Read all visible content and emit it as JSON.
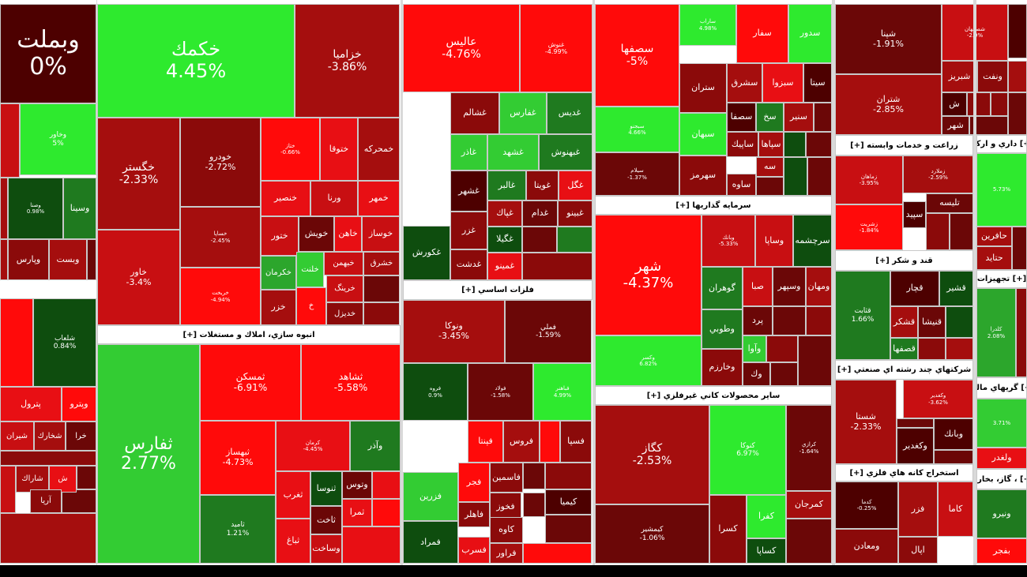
{
  "colors": {
    "dark": "#4d0000",
    "maroon": "#6b0707",
    "red1": "#8b0a0a",
    "red2": "#a50e0e",
    "red3": "#c80f12",
    "red4": "#e80f14",
    "red5": "#ff0a0a",
    "green1": "#0e4d0e",
    "green2": "#1f7a1f",
    "green3": "#2ca62c",
    "green4": "#33cc33",
    "green5": "#2eea2e"
  },
  "groups": [
    {
      "name": "انبوه سازي، املاك و مستغلات [+]"
    },
    {
      "name": "فلزات اساسي [+]"
    },
    {
      "name": "سرمايه گذاريها [+]"
    },
    {
      "name": "ساير محصولات كاني غيرفلزي [+]"
    },
    {
      "name": "زراعت و خدمات وابسته [+]"
    },
    {
      "name": "قند و شكر [+]"
    },
    {
      "name": "شركتهاي چند رشته اي صنعتي [+]"
    },
    {
      "name": "استخراج كانه هاي فلزي [+]"
    },
    {
      "name": "[+] داري و اركيا"
    },
    {
      "name": "[+] تجهيزات"
    },
    {
      "name": "[+] گريهاي مالي"
    },
    {
      "name": "[+] ، گاز، بخاروا"
    }
  ],
  "tiles": [
    {
      "sym": "وبملت",
      "pct": "0%"
    },
    {
      "sym": "وخاور",
      "pct": "5%"
    },
    {
      "sym": "وصنا",
      "pct": "0.98%"
    },
    {
      "sym": "وسينا",
      "pct": ""
    },
    {
      "sym": "وپارس",
      "pct": ""
    },
    {
      "sym": "وبست",
      "pct": ""
    },
    {
      "sym": "شلعاب",
      "pct": "0.84%"
    },
    {
      "sym": "پترول",
      "pct": ""
    },
    {
      "sym": "وپترو",
      "pct": ""
    },
    {
      "sym": "شيران",
      "pct": ""
    },
    {
      "sym": "شخارك",
      "pct": ""
    },
    {
      "sym": "خرا",
      "pct": ""
    },
    {
      "sym": "شاراك",
      "pct": ""
    },
    {
      "sym": "ش",
      "pct": ""
    },
    {
      "sym": "آريا",
      "pct": ""
    },
    {
      "sym": "خكمك",
      "pct": "4.45%"
    },
    {
      "sym": "خزاميا",
      "pct": "-3.86%"
    },
    {
      "sym": "خگستر",
      "pct": "-2.33%"
    },
    {
      "sym": "خودرو",
      "pct": "-2.72%"
    },
    {
      "sym": "ختاز",
      "pct": "-0.66%"
    },
    {
      "sym": "ختوقا",
      "pct": ""
    },
    {
      "sym": "خمحركه",
      "pct": ""
    },
    {
      "sym": "خساپا",
      "pct": "-2.45%"
    },
    {
      "sym": "خنصير",
      "pct": ""
    },
    {
      "sym": "ورنا",
      "pct": ""
    },
    {
      "sym": "خمهر",
      "pct": ""
    },
    {
      "sym": "خاور",
      "pct": "-3.4%"
    },
    {
      "sym": "ختور",
      "pct": ""
    },
    {
      "sym": "خويش",
      "pct": ""
    },
    {
      "sym": "خاهن",
      "pct": ""
    },
    {
      "sym": "خوساز",
      "pct": ""
    },
    {
      "sym": "خريخت",
      "pct": "-4.94%"
    },
    {
      "sym": "خكرمان",
      "pct": ""
    },
    {
      "sym": "خلنت",
      "pct": ""
    },
    {
      "sym": "خبهمن",
      "pct": ""
    },
    {
      "sym": "خشرق",
      "pct": ""
    },
    {
      "sym": "خزر",
      "pct": ""
    },
    {
      "sym": "خ",
      "pct": ""
    },
    {
      "sym": "خرينگ",
      "pct": ""
    },
    {
      "sym": "خديزل",
      "pct": ""
    },
    {
      "sym": "ثفارس",
      "pct": "2.77%"
    },
    {
      "sym": "ثمسكن",
      "pct": "-6.91%"
    },
    {
      "sym": "ثشاهد",
      "pct": "-5.58%"
    },
    {
      "sym": "ثبهساز",
      "pct": "-4.73%"
    },
    {
      "sym": "كرمان",
      "pct": "-4.45%"
    },
    {
      "sym": "وآذر",
      "pct": ""
    },
    {
      "sym": "ثنوسا",
      "pct": ""
    },
    {
      "sym": "وتوس",
      "pct": ""
    },
    {
      "sym": "ثغرب",
      "pct": ""
    },
    {
      "sym": "ثاخت",
      "pct": ""
    },
    {
      "sym": "ثمرا",
      "pct": ""
    },
    {
      "sym": "ثامید",
      "pct": "1.21%"
    },
    {
      "sym": "ثباغ",
      "pct": ""
    },
    {
      "sym": "وساخت",
      "pct": ""
    },
    {
      "sym": "عاليس",
      "pct": "-4.76%"
    },
    {
      "sym": "غنوش",
      "pct": "-4.99%"
    },
    {
      "sym": "غشالم",
      "pct": ""
    },
    {
      "sym": "غفارس",
      "pct": ""
    },
    {
      "sym": "غديس",
      "pct": ""
    },
    {
      "sym": "غاذر",
      "pct": ""
    },
    {
      "sym": "غشهد",
      "pct": ""
    },
    {
      "sym": "غبهنوش",
      "pct": ""
    },
    {
      "sym": "غشهر",
      "pct": ""
    },
    {
      "sym": "غالبر",
      "pct": ""
    },
    {
      "sym": "غويتا",
      "pct": ""
    },
    {
      "sym": "غگل",
      "pct": ""
    },
    {
      "sym": "غپاك",
      "pct": ""
    },
    {
      "sym": "غدام",
      "pct": ""
    },
    {
      "sym": "غبينو",
      "pct": ""
    },
    {
      "sym": "غزر",
      "pct": ""
    },
    {
      "sym": "غگيلا",
      "pct": ""
    },
    {
      "sym": "غكورش",
      "pct": ""
    },
    {
      "sym": "غدشت",
      "pct": ""
    },
    {
      "sym": "غمينو",
      "pct": ""
    },
    {
      "sym": "ونوكا",
      "pct": "-3.45%"
    },
    {
      "sym": "فملي",
      "pct": "-1.59%"
    },
    {
      "sym": "فروه",
      "pct": "0.9%"
    },
    {
      "sym": "فولاد",
      "pct": "-1.58%"
    },
    {
      "sym": "فباهنر",
      "pct": "4.99%"
    },
    {
      "sym": "فپنتا",
      "pct": ""
    },
    {
      "sym": "فروس",
      "pct": ""
    },
    {
      "sym": "فسپا",
      "pct": ""
    },
    {
      "sym": "فجر",
      "pct": ""
    },
    {
      "sym": "فاسمين",
      "pct": ""
    },
    {
      "sym": "فزرين",
      "pct": ""
    },
    {
      "sym": "فخوز",
      "pct": ""
    },
    {
      "sym": "كيميا",
      "pct": ""
    },
    {
      "sym": "فاهلر",
      "pct": ""
    },
    {
      "sym": "كاوه",
      "pct": ""
    },
    {
      "sym": "فمراد",
      "pct": ""
    },
    {
      "sym": "فسرب",
      "pct": ""
    },
    {
      "sym": "فراور",
      "pct": ""
    },
    {
      "sym": "سصفها",
      "pct": "-5%"
    },
    {
      "sym": "ساراب",
      "pct": "4.98%"
    },
    {
      "sym": "سفار",
      "pct": ""
    },
    {
      "sym": "سدور",
      "pct": ""
    },
    {
      "sym": "ستران",
      "pct": ""
    },
    {
      "sym": "سشرق",
      "pct": ""
    },
    {
      "sym": "سبزوا",
      "pct": ""
    },
    {
      "sym": "سيتا",
      "pct": ""
    },
    {
      "sym": "سبجنو",
      "pct": "4.66%"
    },
    {
      "sym": "سصفا",
      "pct": ""
    },
    {
      "sym": "سخ",
      "pct": ""
    },
    {
      "sym": "سنير",
      "pct": ""
    },
    {
      "sym": "سبهان",
      "pct": ""
    },
    {
      "sym": "ساپيك",
      "pct": ""
    },
    {
      "sym": "سپاها",
      "pct": ""
    },
    {
      "sym": "سيلام",
      "pct": "-1.37%"
    },
    {
      "sym": "سهرمز",
      "pct": ""
    },
    {
      "sym": "سه",
      "pct": ""
    },
    {
      "sym": "ساوه",
      "pct": ""
    },
    {
      "sym": "شهر",
      "pct": "-4.37%"
    },
    {
      "sym": "وبانك",
      "pct": "-5.33%"
    },
    {
      "sym": "وساپا",
      "pct": ""
    },
    {
      "sym": "سرچشمه",
      "pct": ""
    },
    {
      "sym": "گوهران",
      "pct": ""
    },
    {
      "sym": "صبا",
      "pct": ""
    },
    {
      "sym": "وسپهر",
      "pct": ""
    },
    {
      "sym": "ومهان",
      "pct": ""
    },
    {
      "sym": "وطوبي",
      "pct": ""
    },
    {
      "sym": "پرد",
      "pct": ""
    },
    {
      "sym": "وآوا",
      "pct": ""
    },
    {
      "sym": "وكسر",
      "pct": "6.82%"
    },
    {
      "sym": "وخارزم",
      "pct": ""
    },
    {
      "sym": "وك",
      "pct": ""
    },
    {
      "sym": "كگاز",
      "pct": "-2.53%"
    },
    {
      "sym": "كنوكا",
      "pct": "6.97%"
    },
    {
      "sym": "كرازي",
      "pct": "-1.64%"
    },
    {
      "sym": "كمرجان",
      "pct": ""
    },
    {
      "sym": "كفرا",
      "pct": ""
    },
    {
      "sym": "كيمشير",
      "pct": "-1.06%"
    },
    {
      "sym": "كسرا",
      "pct": ""
    },
    {
      "sym": "كساپا",
      "pct": ""
    },
    {
      "sym": "شپنا",
      "pct": "-1.91%"
    },
    {
      "sym": "شصفهان",
      "pct": "-2.9%"
    },
    {
      "sym": "شتران",
      "pct": "-2.85%"
    },
    {
      "sym": "شبريز",
      "pct": ""
    },
    {
      "sym": "ونفت",
      "pct": ""
    },
    {
      "sym": "ش",
      "pct": ""
    },
    {
      "sym": "شهر",
      "pct": ""
    },
    {
      "sym": "زماهان",
      "pct": "-3.95%"
    },
    {
      "sym": "زملارد",
      "pct": "-2.59%"
    },
    {
      "sym": "تليسه",
      "pct": ""
    },
    {
      "sym": "سپيد",
      "pct": ""
    },
    {
      "sym": "زشريت",
      "pct": "-1.84%"
    },
    {
      "sym": "قثابت",
      "pct": "1.66%"
    },
    {
      "sym": "قچار",
      "pct": ""
    },
    {
      "sym": "قشير",
      "pct": ""
    },
    {
      "sym": "قشكر",
      "pct": ""
    },
    {
      "sym": "قنيشا",
      "pct": ""
    },
    {
      "sym": "قصفها",
      "pct": ""
    },
    {
      "sym": "وكغدير",
      "pct": "-3.62%"
    },
    {
      "sym": "شستا",
      "pct": "-2.33%"
    },
    {
      "sym": "وبانك",
      "pct": ""
    },
    {
      "sym": "وكغدير",
      "pct": ""
    },
    {
      "sym": "كدما",
      "pct": "-0.25%"
    },
    {
      "sym": "فزر",
      "pct": ""
    },
    {
      "sym": "كاما",
      "pct": ""
    },
    {
      "sym": "ومعادن",
      "pct": ""
    },
    {
      "sym": "اپال",
      "pct": ""
    },
    {
      "sym": "حافرين",
      "pct": ""
    },
    {
      "sym": "حتايد",
      "pct": ""
    },
    {
      "sym": "",
      "pct": "5.73%"
    },
    {
      "sym": "كلدرا",
      "pct": "2.08%"
    },
    {
      "sym": "",
      "pct": "3.71%"
    },
    {
      "sym": "ولغدر",
      "pct": ""
    },
    {
      "sym": "ونيرو",
      "pct": ""
    },
    {
      "sym": "بفجر",
      "pct": ""
    }
  ]
}
